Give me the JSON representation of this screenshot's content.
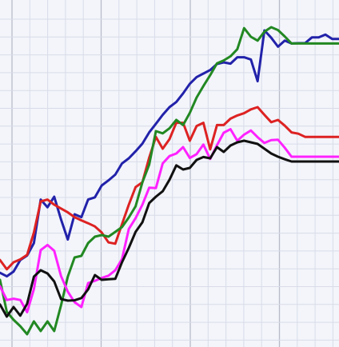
{
  "chart_data": {
    "type": "line",
    "title": "",
    "xlabel": "",
    "ylabel": "",
    "grid": true,
    "xlim": [
      0,
      50
    ],
    "ylim": [
      0,
      100
    ],
    "x": [
      0,
      1,
      2,
      3,
      4,
      5,
      6,
      7,
      8,
      9,
      10,
      11,
      12,
      13,
      14,
      15,
      16,
      17,
      18,
      19,
      20,
      21,
      22,
      23,
      24,
      25,
      26,
      27,
      28,
      29,
      30,
      31,
      32,
      33,
      34,
      35,
      36,
      37,
      38,
      39,
      40,
      41,
      42,
      43,
      44,
      45,
      46,
      47,
      48,
      49,
      50
    ],
    "series": [
      {
        "color": "#2222aa",
        "values": [
          17.2,
          16.1,
          17.6,
          21.2,
          22.6,
          26.5,
          40.1,
          37.7,
          41.0,
          33.9,
          27.6,
          35.5,
          34.6,
          40.1,
          40.8,
          44.5,
          46.1,
          47.9,
          51.4,
          53.0,
          55.2,
          57.6,
          61.1,
          63.8,
          66.6,
          69.0,
          70.6,
          73.3,
          76.3,
          78.4,
          79.5,
          80.6,
          82.5,
          83.0,
          82.6,
          84.6,
          84.6,
          83.9,
          77.1,
          93.0,
          90.7,
          87.9,
          89.8,
          88.9,
          89.0,
          89.0,
          90.8,
          90.8,
          91.7,
          90.3,
          90.3
        ]
      },
      {
        "color": "#dd2222",
        "values": [
          21.2,
          18.3,
          20.5,
          21.4,
          22.8,
          29.8,
          39.5,
          40.1,
          38.5,
          37.3,
          36.1,
          34.6,
          33.6,
          32.7,
          31.7,
          29.8,
          26.7,
          26.3,
          32.4,
          38.5,
          44.0,
          45.5,
          53.2,
          59.7,
          56.0,
          59.0,
          64.1,
          64.1,
          58.5,
          63.1,
          64.1,
          55.8,
          63.4,
          63.4,
          65.4,
          66.4,
          67.1,
          68.3,
          69.0,
          66.6,
          64.3,
          65.0,
          63.2,
          61.1,
          60.7,
          59.7,
          59.7,
          59.7,
          59.7,
          59.7,
          59.7
        ]
      },
      {
        "color": "#228822",
        "values": [
          15.0,
          5.0,
          2.5,
          0.5,
          -2.0,
          2.0,
          -1.0,
          2.0,
          -1.0,
          7.0,
          16.0,
          22.0,
          22.5,
          26.5,
          28.5,
          29.0,
          28.5,
          30.0,
          31.5,
          34.5,
          38.0,
          45.5,
          51.0,
          61.5,
          60.8,
          62.4,
          65.0,
          63.4,
          67.2,
          72.0,
          75.6,
          79.0,
          82.7,
          83.6,
          84.9,
          87.1,
          93.7,
          91.0,
          89.8,
          92.6,
          94.0,
          93.1,
          91.1,
          88.9,
          88.9,
          88.9,
          88.9,
          88.9,
          88.9,
          88.9,
          88.9
        ]
      },
      {
        "color": "#ff22ff",
        "values": [
          13.0,
          8.7,
          9.1,
          8.7,
          4.9,
          12.1,
          24.3,
          25.9,
          24.1,
          16.2,
          11.3,
          8.0,
          6.5,
          14.0,
          14.7,
          15.6,
          16.3,
          18.0,
          21.5,
          30.9,
          34.3,
          38.5,
          43.8,
          43.7,
          51.4,
          53.7,
          54.5,
          56.5,
          53.1,
          54.3,
          57.3,
          52.8,
          57.1,
          61.0,
          62.1,
          58.5,
          60.4,
          61.7,
          59.6,
          57.8,
          58.7,
          58.8,
          56.3,
          53.5,
          53.5,
          53.5,
          53.5,
          53.5,
          53.5,
          53.5,
          53.5
        ]
      },
      {
        "color": "#111111",
        "values": [
          7.3,
          3.5,
          6.5,
          3.8,
          7.5,
          16.0,
          18.0,
          17.0,
          14.5,
          9.0,
          8.5,
          8.6,
          9.3,
          12.0,
          16.5,
          15.0,
          15.2,
          15.3,
          20.5,
          25.0,
          30.0,
          33.0,
          39.0,
          41.0,
          42.7,
          46.3,
          50.8,
          49.5,
          50.0,
          52.5,
          53.4,
          53.0,
          56.5,
          55.0,
          57.0,
          58.0,
          58.5,
          58.0,
          57.5,
          56.0,
          54.5,
          53.5,
          52.7,
          52.0,
          52.0,
          52.0,
          52.0,
          52.0,
          52.0,
          52.0,
          52.0
        ]
      }
    ]
  }
}
